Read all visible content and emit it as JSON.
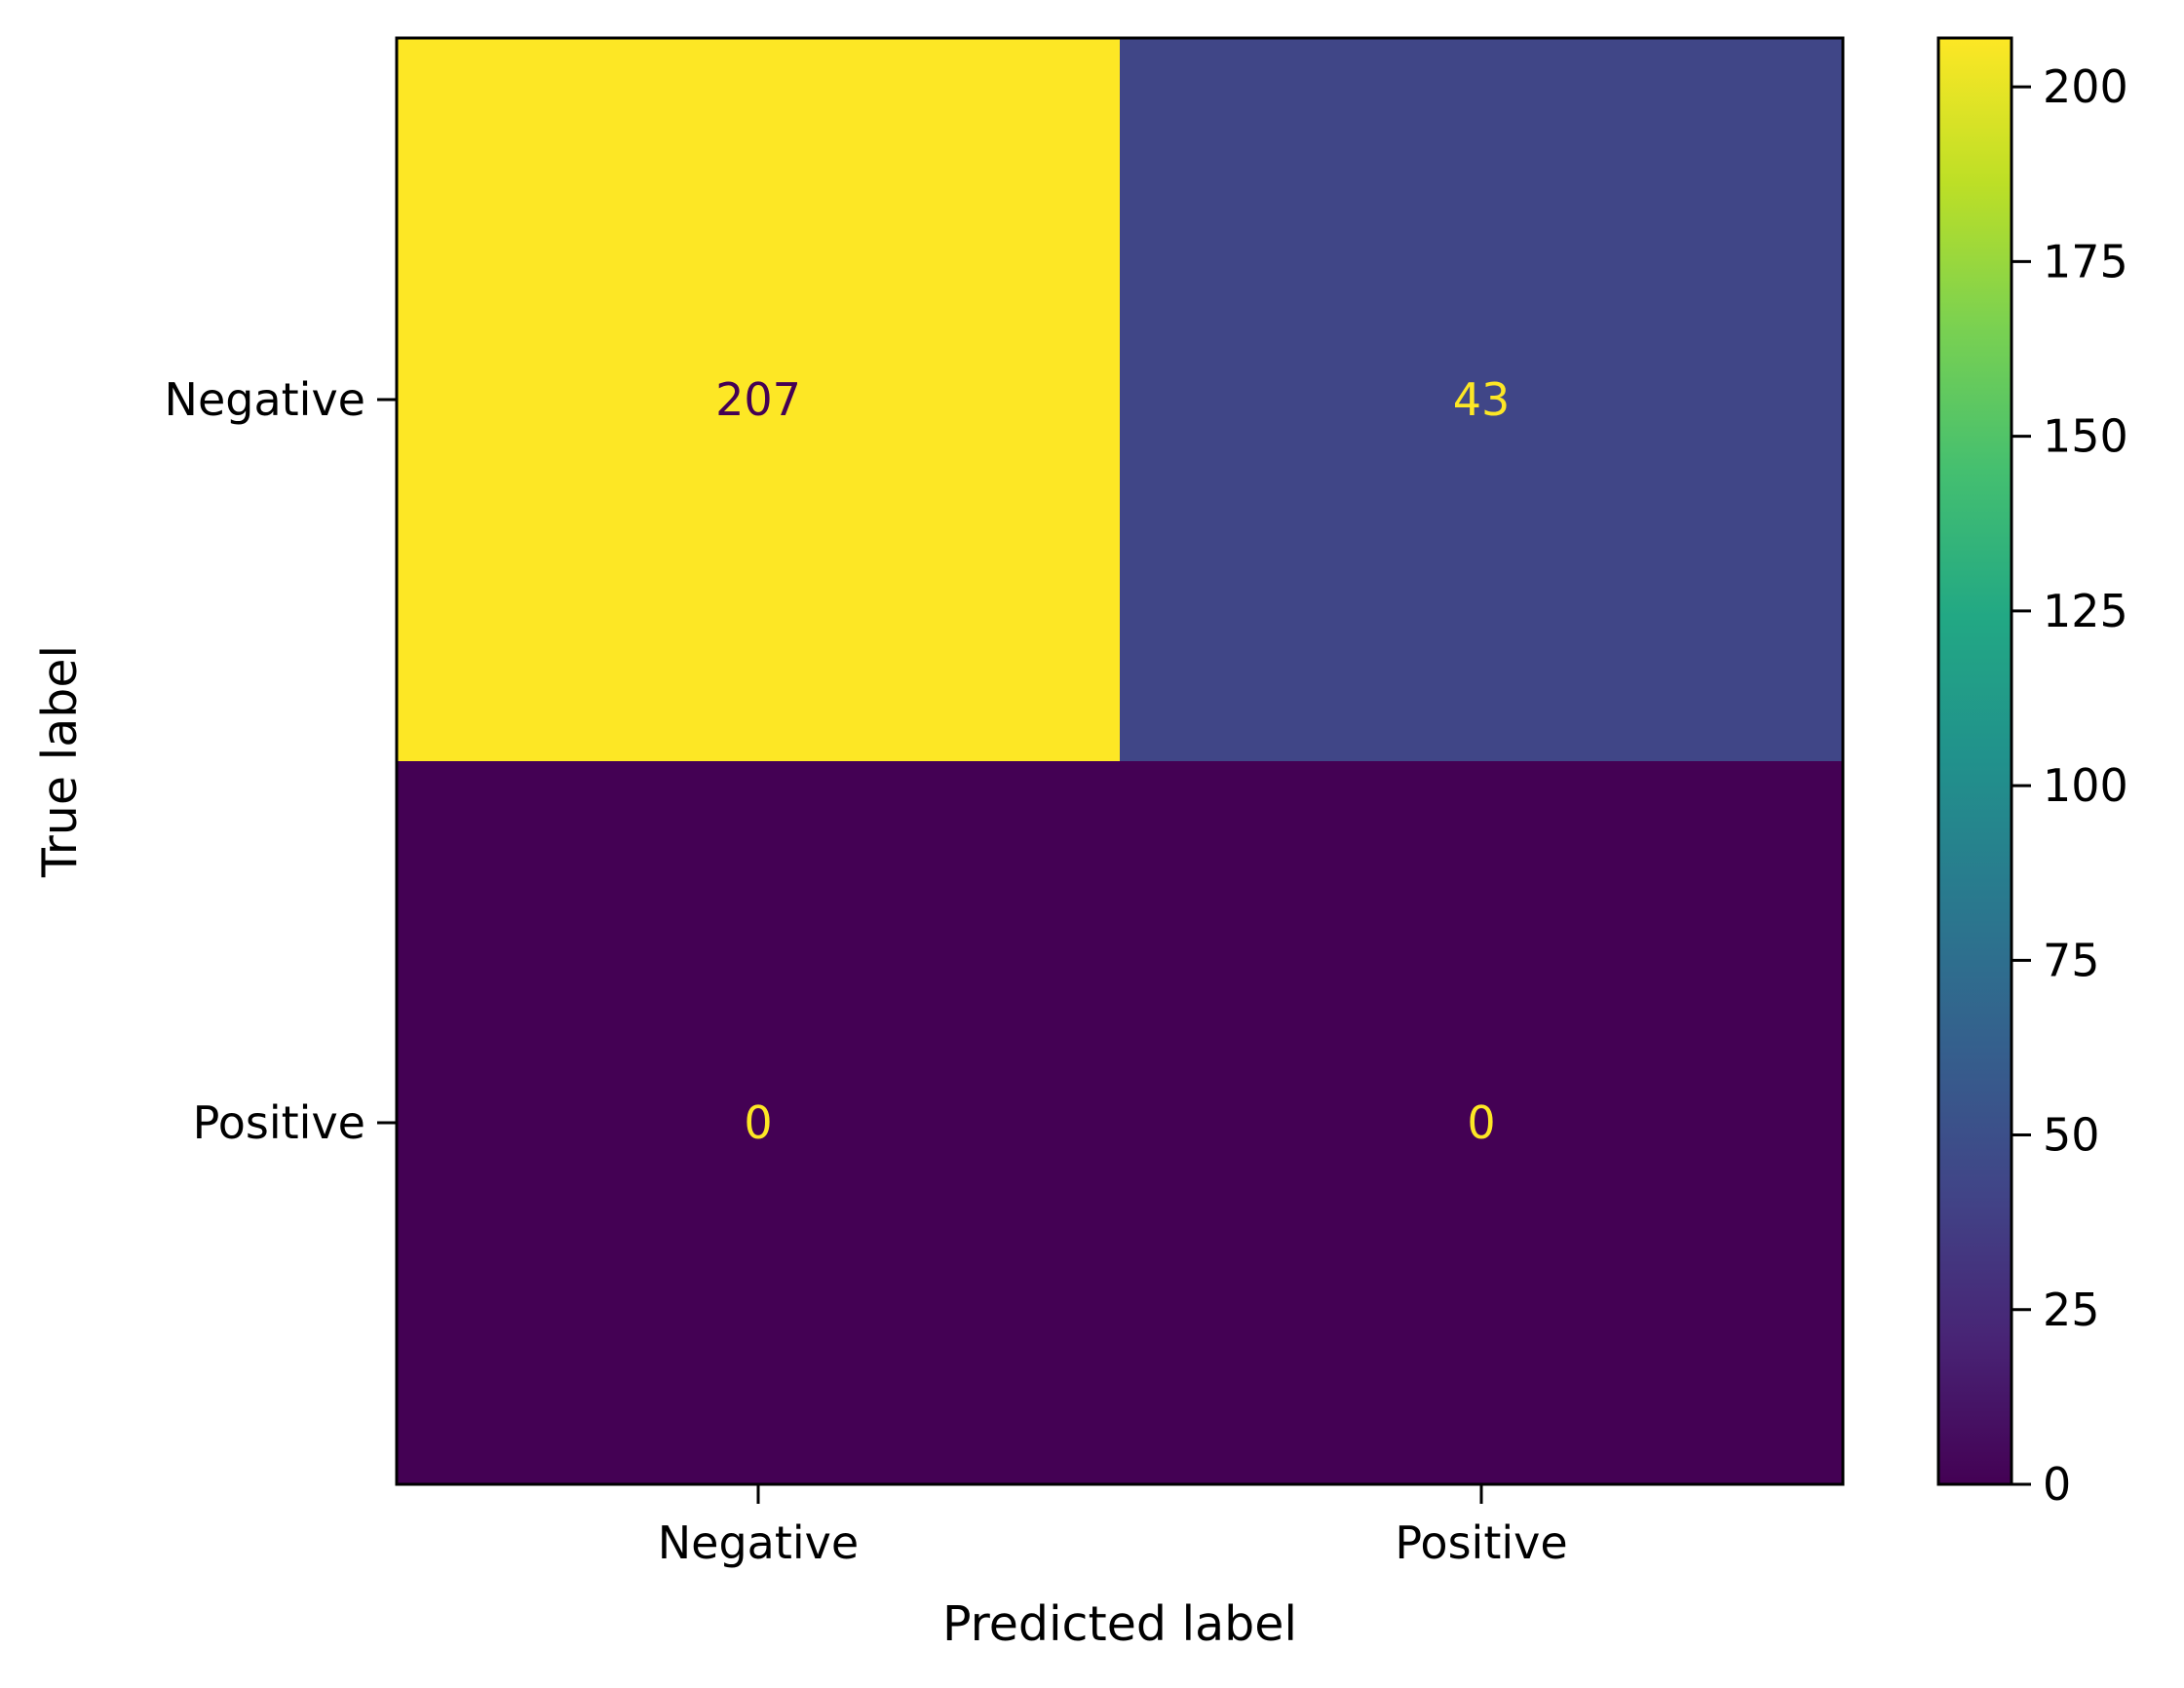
{
  "chart_data": {
    "type": "heatmap",
    "title": "",
    "xlabel": "Predicted label",
    "ylabel": "True label",
    "x_categories": [
      "Negative",
      "Positive"
    ],
    "y_categories": [
      "Negative",
      "Positive"
    ],
    "values": [
      [
        207,
        43
      ],
      [
        0,
        0
      ]
    ],
    "value_labels": [
      [
        "207",
        "43"
      ],
      [
        "0",
        "0"
      ]
    ],
    "colormap": "viridis",
    "colorbar": {
      "range": [
        0,
        207
      ],
      "ticks": [
        0,
        25,
        50,
        75,
        100,
        125,
        150,
        175,
        200
      ],
      "tick_labels": [
        "0",
        "25",
        "50",
        "75",
        "100",
        "125",
        "150",
        "175",
        "200"
      ]
    },
    "grid": false,
    "text_colors": {
      "on_light": "#440154",
      "on_dark": "#fde725"
    }
  }
}
